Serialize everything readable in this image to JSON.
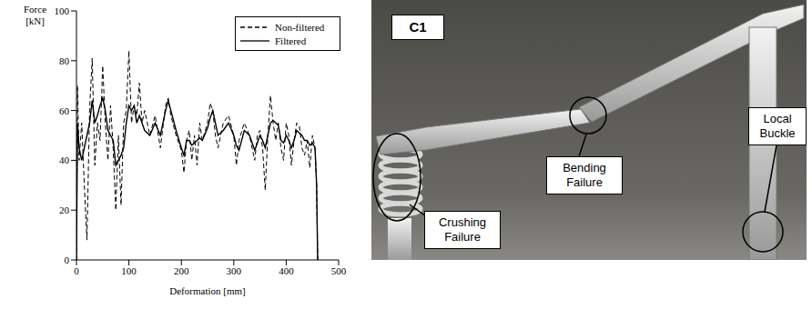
{
  "chart_data": {
    "type": "line",
    "x_label": "Deformation [mm]",
    "y_label": "Force [kN]",
    "x": [
      0,
      2,
      5,
      10,
      15,
      20,
      25,
      30,
      35,
      40,
      45,
      50,
      55,
      60,
      65,
      70,
      75,
      80,
      85,
      90,
      95,
      100,
      105,
      110,
      115,
      120,
      125,
      130,
      140,
      150,
      160,
      170,
      175,
      180,
      190,
      200,
      205,
      210,
      215,
      220,
      225,
      230,
      235,
      240,
      250,
      255,
      260,
      265,
      270,
      280,
      290,
      300,
      305,
      310,
      320,
      330,
      340,
      345,
      350,
      355,
      360,
      365,
      370,
      375,
      380,
      385,
      390,
      395,
      400,
      405,
      410,
      415,
      420,
      425,
      430,
      435,
      440,
      445,
      450,
      455,
      458,
      460
    ],
    "series": [
      {
        "name": "Non-filtered",
        "color": "#000000",
        "line_style": "dashed",
        "values": [
          0,
          70,
          40,
          55,
          30,
          8,
          60,
          81,
          38,
          55,
          48,
          78,
          55,
          40,
          62,
          45,
          20,
          50,
          22,
          55,
          60,
          84,
          55,
          62,
          58,
          71,
          55,
          60,
          50,
          58,
          45,
          62,
          65,
          58,
          50,
          44,
          35,
          48,
          52,
          40,
          50,
          38,
          55,
          48,
          55,
          63,
          60,
          50,
          45,
          55,
          58,
          50,
          38,
          48,
          55,
          50,
          40,
          50,
          52,
          45,
          28,
          50,
          66,
          55,
          48,
          55,
          45,
          40,
          55,
          50,
          38,
          48,
          55,
          54,
          45,
          42,
          48,
          37,
          50,
          45,
          30,
          0
        ]
      },
      {
        "name": "Filtered",
        "color": "#000000",
        "line_style": "solid",
        "values": [
          0,
          55,
          45,
          40,
          45,
          50,
          55,
          64,
          55,
          58,
          62,
          65,
          60,
          52,
          50,
          48,
          38,
          40,
          42,
          45,
          55,
          62,
          60,
          62,
          55,
          58,
          55,
          52,
          50,
          55,
          50,
          60,
          64,
          60,
          52,
          45,
          42,
          48,
          48,
          46,
          47,
          48,
          49,
          48,
          53,
          57,
          60,
          55,
          50,
          52,
          55,
          50,
          46,
          44,
          52,
          50,
          44,
          47,
          50,
          48,
          45,
          50,
          55,
          56,
          55,
          54,
          48,
          47,
          50,
          48,
          45,
          48,
          52,
          51,
          50,
          48,
          48,
          46,
          47,
          45,
          30,
          0
        ]
      }
    ],
    "xlim": [
      0,
      500
    ],
    "xticks": [
      0,
      100,
      200,
      300,
      400,
      500
    ],
    "ylim": [
      0,
      100
    ],
    "yticks": [
      0,
      20,
      40,
      60,
      80,
      100
    ],
    "grid": false,
    "legend": "upper right"
  },
  "photo": {
    "panel_label": "C1",
    "callouts": {
      "crushing": "Crushing Failure",
      "bending": "Bending Failure",
      "buckle": "Local Buckle"
    }
  }
}
